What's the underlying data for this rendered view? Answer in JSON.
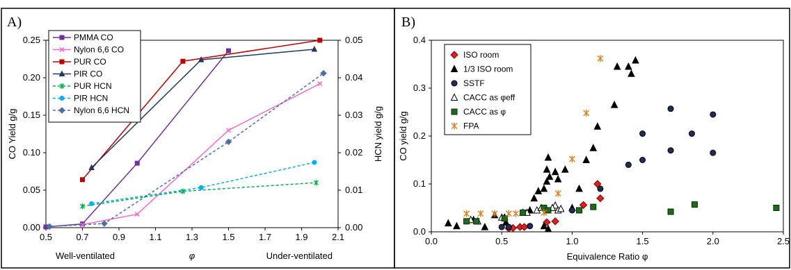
{
  "chart_data": [
    {
      "panel": "A)",
      "type": "line",
      "xlabel": "φ",
      "xlabel_left": "Well-ventilated",
      "xlabel_right": "Under-ventilated",
      "ylabel": "CO Yield g/g",
      "y2label": "HCN yield g/g",
      "xlim": [
        0.5,
        2.1
      ],
      "ylim": [
        0,
        0.25
      ],
      "y2lim": [
        0,
        0.05
      ],
      "xticks": [
        "0.5",
        "0.7",
        "0.9",
        "1.1",
        "1.3",
        "1.5",
        "1.7",
        "1.9",
        "2.1"
      ],
      "yticks": [
        "0.00",
        "0.05",
        "0.10",
        "0.15",
        "0.20",
        "0.25"
      ],
      "y2ticks": [
        "0.00",
        "0.01",
        "0.02",
        "0.03",
        "0.04",
        "0.05"
      ],
      "legend_position": "top-left",
      "series": [
        {
          "name": "PMMA CO",
          "axis": "left",
          "color": "#7030a0",
          "marker": "square",
          "dash": false,
          "x": [
            0.5,
            0.7,
            1.0,
            1.5
          ],
          "y": [
            0.001,
            0.005,
            0.086,
            0.236
          ]
        },
        {
          "name": "Nylon 6,6 CO",
          "axis": "left",
          "color": "#ff66cc",
          "marker": "x",
          "dash": false,
          "x": [
            0.7,
            1.0,
            1.5,
            2.0
          ],
          "y": [
            0.004,
            0.018,
            0.13,
            0.192
          ]
        },
        {
          "name": "PUR CO",
          "axis": "left",
          "color": "#c00000",
          "marker": "square",
          "dash": false,
          "x": [
            0.7,
            1.25,
            2.0
          ],
          "y": [
            0.064,
            0.222,
            0.25
          ]
        },
        {
          "name": "PIR CO",
          "axis": "left",
          "color": "#1f3864",
          "marker": "triangle",
          "dash": false,
          "x": [
            0.75,
            1.35,
            1.97
          ],
          "y": [
            0.08,
            0.224,
            0.238
          ]
        },
        {
          "name": "PUR HCN",
          "axis": "right",
          "color": "#00b050",
          "marker": "asterisk",
          "dash": true,
          "x": [
            0.7,
            1.25,
            1.98
          ],
          "y": [
            0.0057,
            0.0097,
            0.012
          ]
        },
        {
          "name": "PIR HCN",
          "axis": "right",
          "color": "#00b0f0",
          "marker": "circle",
          "dash": true,
          "x": [
            0.75,
            1.35,
            1.97
          ],
          "y": [
            0.0064,
            0.0107,
            0.0174
          ]
        },
        {
          "name": "Nylon 6,6 HCN",
          "axis": "right",
          "color": "#4a6fa5",
          "marker": "diamond",
          "dash": true,
          "x": [
            0.52,
            0.82,
            1.5,
            2.02
          ],
          "y": [
            0.0003,
            0.0011,
            0.0229,
            0.0412
          ]
        }
      ]
    },
    {
      "panel": "B)",
      "type": "scatter",
      "xlabel": "Equivalence Ratio φ",
      "ylabel": "CO yield g/g",
      "xlim": [
        0,
        2.5
      ],
      "ylim": [
        0,
        0.4
      ],
      "xticks": [
        "0.0",
        "0.5",
        "1.0",
        "1.5",
        "2.0",
        "2.5"
      ],
      "yticks": [
        "0.0",
        "0.1",
        "0.2",
        "0.3",
        "0.4"
      ],
      "legend_position": "top-left",
      "series": [
        {
          "name": "ISO room",
          "marker": "diamond",
          "color": "#e02020",
          "stroke": "#800000",
          "points": [
            [
              0.55,
              0.007
            ],
            [
              0.58,
              0.008
            ],
            [
              0.63,
              0.01
            ],
            [
              0.66,
              0.01
            ],
            [
              0.82,
              0.02
            ],
            [
              0.88,
              0.022
            ],
            [
              1.08,
              0.056
            ],
            [
              1.18,
              0.1
            ],
            [
              1.2,
              0.07
            ]
          ]
        },
        {
          "name": "1/3 ISO room",
          "marker": "triangle",
          "color": "#000000",
          "stroke": "#000000",
          "points": [
            [
              0.12,
              0.018
            ],
            [
              0.18,
              0.012
            ],
            [
              0.3,
              0.025
            ],
            [
              0.38,
              0.01
            ],
            [
              0.45,
              0.035
            ],
            [
              0.52,
              0.03
            ],
            [
              0.53,
              0.02
            ],
            [
              0.65,
              0.04
            ],
            [
              0.7,
              0.045
            ],
            [
              0.73,
              0.07
            ],
            [
              0.76,
              0.085
            ],
            [
              0.8,
              0.09
            ],
            [
              0.82,
              0.105
            ],
            [
              0.84,
              0.115
            ],
            [
              0.82,
              0.13
            ],
            [
              0.83,
              0.155
            ],
            [
              0.88,
              0.125
            ],
            [
              0.9,
              0.11
            ],
            [
              0.95,
              0.13
            ],
            [
              1.0,
              0.05
            ],
            [
              1.05,
              0.09
            ],
            [
              1.1,
              0.15
            ],
            [
              1.15,
              0.175
            ],
            [
              1.18,
              0.22
            ],
            [
              1.3,
              0.265
            ],
            [
              1.32,
              0.345
            ],
            [
              1.4,
              0.345
            ],
            [
              1.42,
              0.33
            ],
            [
              1.45,
              0.358
            ],
            [
              0.8,
              0.012
            ],
            [
              0.83,
              0.006
            ]
          ]
        },
        {
          "name": "SSTF",
          "marker": "circle",
          "color": "#1f2d5a",
          "stroke": "#000000",
          "points": [
            [
              0.5,
              0.01
            ],
            [
              0.55,
              0.01
            ],
            [
              0.7,
              0.012
            ],
            [
              1.0,
              0.045
            ],
            [
              1.2,
              0.09
            ],
            [
              1.4,
              0.14
            ],
            [
              1.5,
              0.15
            ],
            [
              1.5,
              0.205
            ],
            [
              1.7,
              0.17
            ],
            [
              1.7,
              0.257
            ],
            [
              1.85,
              0.205
            ],
            [
              2.0,
              0.165
            ],
            [
              2.0,
              0.245
            ]
          ]
        },
        {
          "name": "CACC as φeff",
          "marker": "open-triangle",
          "color": "#ffffff",
          "stroke": "#000000",
          "points": [
            [
              0.28,
              0.025
            ],
            [
              0.33,
              0.022
            ],
            [
              0.5,
              0.03
            ],
            [
              0.68,
              0.04
            ],
            [
              0.75,
              0.045
            ],
            [
              0.78,
              0.05
            ],
            [
              0.88,
              0.055
            ],
            [
              0.9,
              0.045
            ],
            [
              0.92,
              0.048
            ],
            [
              0.86,
              0.05
            ]
          ]
        },
        {
          "name": "CACC as φ",
          "marker": "square",
          "color": "#1f6a1f",
          "stroke": "#003300",
          "points": [
            [
              0.25,
              0.022
            ],
            [
              0.32,
              0.022
            ],
            [
              0.52,
              0.028
            ],
            [
              0.65,
              0.04
            ],
            [
              0.8,
              0.05
            ],
            [
              0.83,
              0.045
            ],
            [
              1.05,
              0.045
            ],
            [
              1.15,
              0.052
            ],
            [
              1.7,
              0.042
            ],
            [
              1.87,
              0.057
            ],
            [
              2.45,
              0.05
            ]
          ]
        },
        {
          "name": "FPA",
          "marker": "asterisk",
          "color": "#e08020",
          "stroke": "#e08020",
          "points": [
            [
              0.25,
              0.038
            ],
            [
              0.35,
              0.038
            ],
            [
              0.45,
              0.038
            ],
            [
              0.55,
              0.038
            ],
            [
              0.6,
              0.038
            ],
            [
              0.8,
              0.04
            ],
            [
              0.9,
              0.08
            ],
            [
              1.0,
              0.152
            ],
            [
              1.1,
              0.248
            ],
            [
              1.2,
              0.362
            ]
          ]
        }
      ]
    }
  ]
}
